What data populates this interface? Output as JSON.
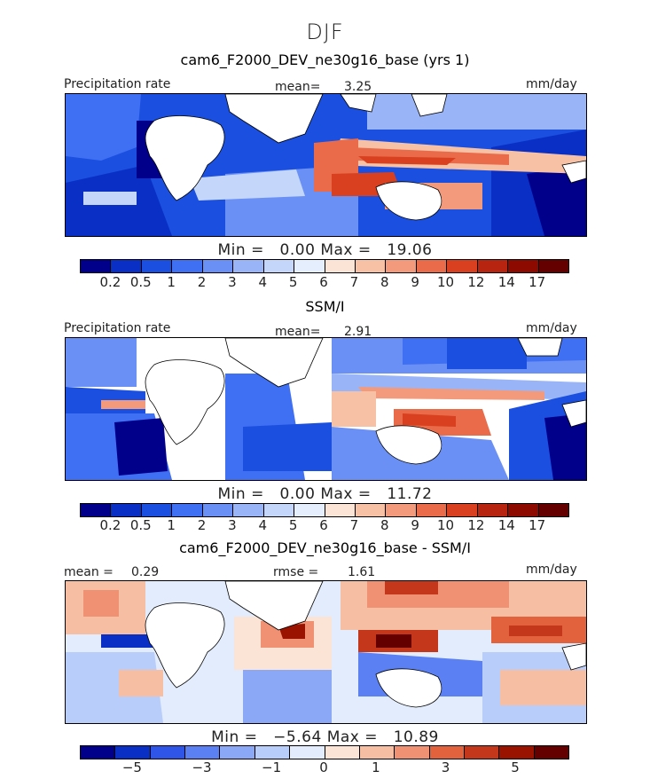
{
  "season": "DJF",
  "panels": [
    {
      "title": "cam6_F2000_DEV_ne30g16_base (yrs 1)",
      "left_label": "Precipitation rate",
      "center_label": "mean=",
      "center_value": "3.25",
      "right_label": "mm/day",
      "min_label": "Min =",
      "min_value": "0.00",
      "max_label": "Max =",
      "max_value": "19.06"
    },
    {
      "title": "SSM/I",
      "left_label": "Precipitation rate",
      "center_label": "mean=",
      "center_value": "2.91",
      "right_label": "mm/day",
      "min_label": "Min =",
      "min_value": "0.00",
      "max_label": "Max =",
      "max_value": "11.72"
    },
    {
      "title": "cam6_F2000_DEV_ne30g16_base - SSM/I",
      "left_label": "mean =",
      "left_value": "0.29",
      "center_label": "rmse =",
      "center_value": "1.61",
      "right_label": "mm/day",
      "min_label": "Min =",
      "min_value": "−5.64",
      "max_label": "Max =",
      "max_value": "10.89"
    }
  ],
  "chart_data": [
    {
      "type": "heatmap",
      "title": "cam6_F2000_DEV_ne30g16_base (yrs 1)",
      "subtitle": "DJF",
      "variable": "Precipitation rate",
      "units": "mm/day",
      "mean": 3.25,
      "min": 0.0,
      "max": 19.06,
      "colorbar_levels": [
        0.2,
        0.5,
        1,
        2,
        3,
        4,
        5,
        6,
        7,
        8,
        9,
        10,
        12,
        14,
        17
      ],
      "colorbar_tick_labels": [
        "0.2",
        "0.5",
        "1",
        "2",
        "3",
        "4",
        "5",
        "6",
        "7",
        "8",
        "9",
        "10",
        "12",
        "14",
        "17"
      ]
    },
    {
      "type": "heatmap",
      "title": "SSM/I",
      "variable": "Precipitation rate",
      "units": "mm/day",
      "mean": 2.91,
      "min": 0.0,
      "max": 11.72,
      "colorbar_levels": [
        0.2,
        0.5,
        1,
        2,
        3,
        4,
        5,
        6,
        7,
        8,
        9,
        10,
        12,
        14,
        17
      ],
      "colorbar_tick_labels": [
        "0.2",
        "0.5",
        "1",
        "2",
        "3",
        "4",
        "5",
        "6",
        "7",
        "8",
        "9",
        "10",
        "12",
        "14",
        "17"
      ]
    },
    {
      "type": "heatmap",
      "title": "cam6_F2000_DEV_ne30g16_base - SSM/I",
      "units": "mm/day",
      "mean": 0.29,
      "rmse": 1.61,
      "min": -5.64,
      "max": 10.89,
      "colorbar_levels": [
        -6,
        -5,
        -4,
        -3,
        -2,
        -1,
        0,
        0.5,
        1,
        2,
        3,
        4,
        5
      ],
      "colorbar_tick_labels": [
        "−5",
        "−3",
        "−1",
        "0",
        "1",
        "3",
        "5"
      ]
    }
  ],
  "colors": {
    "precip": [
      "#00008b",
      "#0a2fc4",
      "#1a4fe0",
      "#3f6ff2",
      "#6b90f5",
      "#9ab5f7",
      "#c4d6fa",
      "#e4eefc",
      "#fbe4d6",
      "#f7c1a6",
      "#f29a7b",
      "#ea6b4a",
      "#d8401f",
      "#b72510",
      "#8c0a00",
      "#650000"
    ],
    "diff": [
      "#00008b",
      "#0a2fc4",
      "#2f55e8",
      "#5a80f3",
      "#8aa8f6",
      "#b8cdf9",
      "#e2ecfc",
      "#fbe4d6",
      "#f6bfa4",
      "#ef9172",
      "#e2623e",
      "#c4371a",
      "#991300",
      "#650000"
    ]
  }
}
